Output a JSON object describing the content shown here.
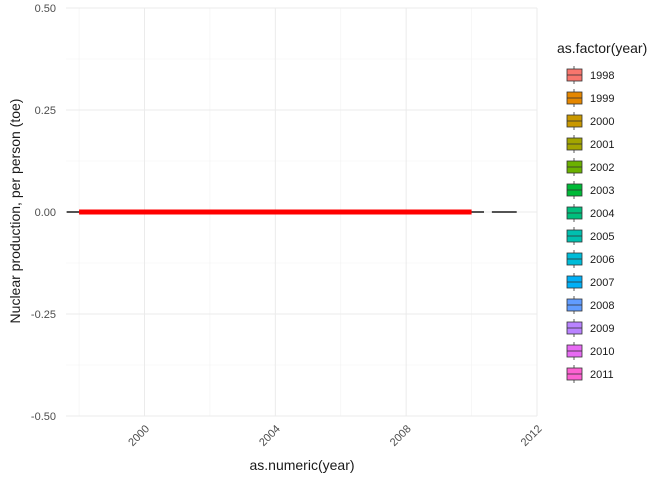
{
  "chart_data": {
    "type": "boxplot",
    "title": "",
    "xlabel": "as.numeric(year)",
    "ylabel": "Nuclear production, per person (toe)",
    "xlim": [
      1997.6,
      2012
    ],
    "ylim": [
      -0.5,
      0.5
    ],
    "x_ticks": [
      2000,
      2004,
      2008,
      2012
    ],
    "x_tick_labels": [
      "2000",
      "2004",
      "2008",
      "2012"
    ],
    "y_ticks": [
      -0.5,
      -0.25,
      0,
      0.25,
      0.5
    ],
    "y_tick_labels": [
      "-0.50",
      "-0.25",
      "0.00",
      "0.25",
      "0.50"
    ],
    "grid": true,
    "legend": {
      "title": "as.factor(year)",
      "position": "right",
      "items": [
        {
          "label": "1998",
          "color": "#F8766D"
        },
        {
          "label": "1999",
          "color": "#E58700"
        },
        {
          "label": "2000",
          "color": "#C99800"
        },
        {
          "label": "2001",
          "color": "#A3A500"
        },
        {
          "label": "2002",
          "color": "#6BB100"
        },
        {
          "label": "2003",
          "color": "#00BA38"
        },
        {
          "label": "2004",
          "color": "#00BF7D"
        },
        {
          "label": "2005",
          "color": "#00C0AF"
        },
        {
          "label": "2006",
          "color": "#00BCD8"
        },
        {
          "label": "2007",
          "color": "#00B0F6"
        },
        {
          "label": "2008",
          "color": "#619CFF"
        },
        {
          "label": "2009",
          "color": "#B983FF"
        },
        {
          "label": "2010",
          "color": "#E76BF3"
        },
        {
          "label": "2011",
          "color": "#FD61D1"
        }
      ]
    },
    "series": [
      {
        "x": 1998,
        "value": 0,
        "color": "#F8766D"
      },
      {
        "x": 1999,
        "value": 0,
        "color": "#E58700"
      },
      {
        "x": 2000,
        "value": 0,
        "color": "#C99800"
      },
      {
        "x": 2001,
        "value": 0,
        "color": "#A3A500"
      },
      {
        "x": 2002,
        "value": 0,
        "color": "#6BB100"
      },
      {
        "x": 2003,
        "value": 0,
        "color": "#00BA38"
      },
      {
        "x": 2004,
        "value": 0,
        "color": "#00BF7D"
      },
      {
        "x": 2005,
        "value": 0,
        "color": "#00C0AF"
      },
      {
        "x": 2006,
        "value": 0,
        "color": "#00BCD8"
      },
      {
        "x": 2007,
        "value": 0,
        "color": "#00B0F6"
      },
      {
        "x": 2008,
        "value": 0,
        "color": "#619CFF"
      },
      {
        "x": 2009,
        "value": 0,
        "color": "#B983FF"
      },
      {
        "x": 2010,
        "value": 0,
        "color": "#E76BF3"
      },
      {
        "x": 2011,
        "value": 0,
        "color": "#FD61D1"
      }
    ],
    "overlay_line": {
      "x_from": 1998,
      "x_to": 2010,
      "value": 0,
      "color": "#FF0000"
    }
  }
}
